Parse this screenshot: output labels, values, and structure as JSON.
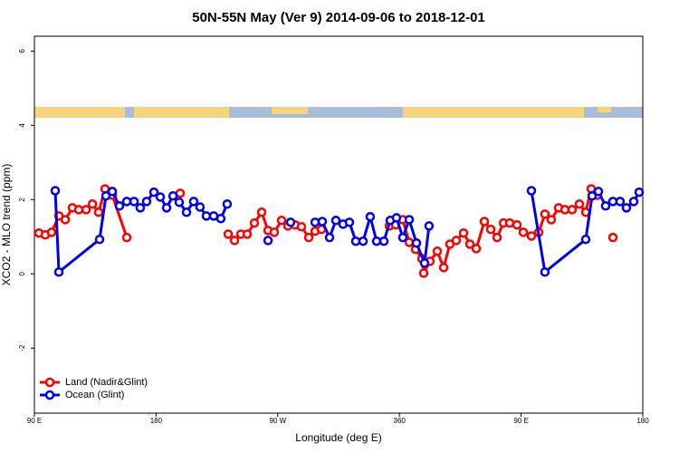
{
  "chart_data": {
    "type": "line",
    "title": "50N-55N May (Ver 9)   2014-09-06 to 2018-12-01",
    "x_label": "Longitude (deg E)",
    "y_label": "XCO2 - MLO trend (ppm)",
    "xlim": [
      90,
      540
    ],
    "ylim": [
      -3.75,
      6.4
    ],
    "xticks": [
      {
        "value": 90,
        "label": "90 E"
      },
      180,
      {
        "value": 270,
        "label": "90 W"
      },
      360,
      {
        "value": 450,
        "label": "90 E"
      },
      {
        "value": 540,
        "label": "180"
      }
    ],
    "yticks": [
      -2,
      0,
      2,
      4,
      6
    ],
    "grid": false,
    "legend": "bottom left",
    "series": [
      {
        "name": "Land (Nadir&Glint)",
        "color": "#ff0000",
        "x": [
          93.3,
          98.0,
          102.7,
          108.1,
          112.8,
          118.1,
          122.8,
          128.2,
          132.9,
          137.5,
          142.2,
          147.6,
          158.3,
          null,
          197.8,
          null,
          233.3,
          238.0,
          242.7,
          247.4,
          252.7,
          258.1,
          262.8,
          267.4,
          272.8,
          277.5,
          282.8,
          287.5,
          292.9,
          297.6,
          302.3,
          null,
          352.5,
          357.2,
          362.5,
          367.2,
          371.9,
          376.6,
          377.9,
          382.6,
          388.0,
          392.7,
          397.3,
          402.0,
          407.4,
          412.1,
          416.8,
          422.8,
          427.5,
          432.2,
          436.9,
          441.5,
          446.9,
          451.6,
          457.6,
          463.0,
          467.6,
          472.3,
          477.7,
          482.4,
          487.7,
          493.1,
          497.8,
          501.8,
          506.5,
          null,
          517.9
        ],
        "values": [
          1.1,
          1.05,
          1.12,
          1.56,
          1.46,
          1.78,
          1.73,
          1.73,
          1.88,
          1.66,
          2.29,
          2.12,
          0.98,
          null,
          2.17,
          null,
          1.07,
          0.9,
          1.07,
          1.07,
          1.37,
          1.66,
          1.17,
          1.12,
          1.44,
          1.29,
          1.32,
          1.27,
          0.98,
          1.15,
          1.2,
          null,
          1.29,
          1.32,
          1.46,
          0.85,
          0.66,
          0.41,
          0.02,
          0.34,
          0.61,
          0.17,
          0.8,
          0.9,
          1.1,
          0.8,
          0.68,
          1.41,
          1.2,
          0.98,
          1.37,
          1.37,
          1.32,
          1.12,
          1.02,
          1.12,
          1.61,
          1.46,
          1.78,
          1.73,
          1.73,
          1.88,
          1.66,
          2.29,
          2.12,
          null,
          0.98
        ]
      },
      {
        "name": "Ocean (Glint)",
        "color": "#0000ee",
        "x": [
          105.4,
          108.1,
          138.2,
          142.9,
          147.6,
          152.9,
          158.3,
          163.7,
          168.3,
          173.0,
          178.4,
          183.1,
          187.8,
          192.5,
          197.1,
          202.5,
          207.8,
          212.5,
          217.2,
          222.6,
          227.9,
          232.6,
          null,
          262.8,
          null,
          279.5,
          null,
          297.6,
          302.9,
          308.3,
          313.0,
          318.3,
          323.0,
          327.7,
          333.1,
          338.4,
          343.1,
          348.5,
          353.2,
          357.8,
          362.5,
          367.2,
          372.6,
          378.6,
          381.9,
          null,
          457.6,
          467.6,
          497.8,
          502.5,
          507.2,
          512.5,
          517.9,
          523.2,
          527.9,
          533.3,
          537.3
        ],
        "values": [
          2.24,
          0.05,
          0.93,
          2.1,
          2.22,
          1.83,
          1.95,
          1.95,
          1.78,
          1.95,
          2.2,
          2.07,
          1.78,
          2.1,
          1.93,
          1.66,
          1.95,
          1.8,
          1.56,
          1.56,
          1.49,
          1.88,
          null,
          0.9,
          null,
          1.39,
          null,
          1.39,
          1.41,
          0.98,
          1.44,
          1.34,
          1.39,
          0.88,
          0.88,
          1.54,
          0.88,
          0.88,
          1.44,
          1.51,
          0.98,
          1.46,
          0.83,
          0.29,
          1.29,
          null,
          2.24,
          0.05,
          0.93,
          2.1,
          2.22,
          1.83,
          1.95,
          1.95,
          1.78,
          1.95,
          2.2
        ]
      }
    ]
  }
}
